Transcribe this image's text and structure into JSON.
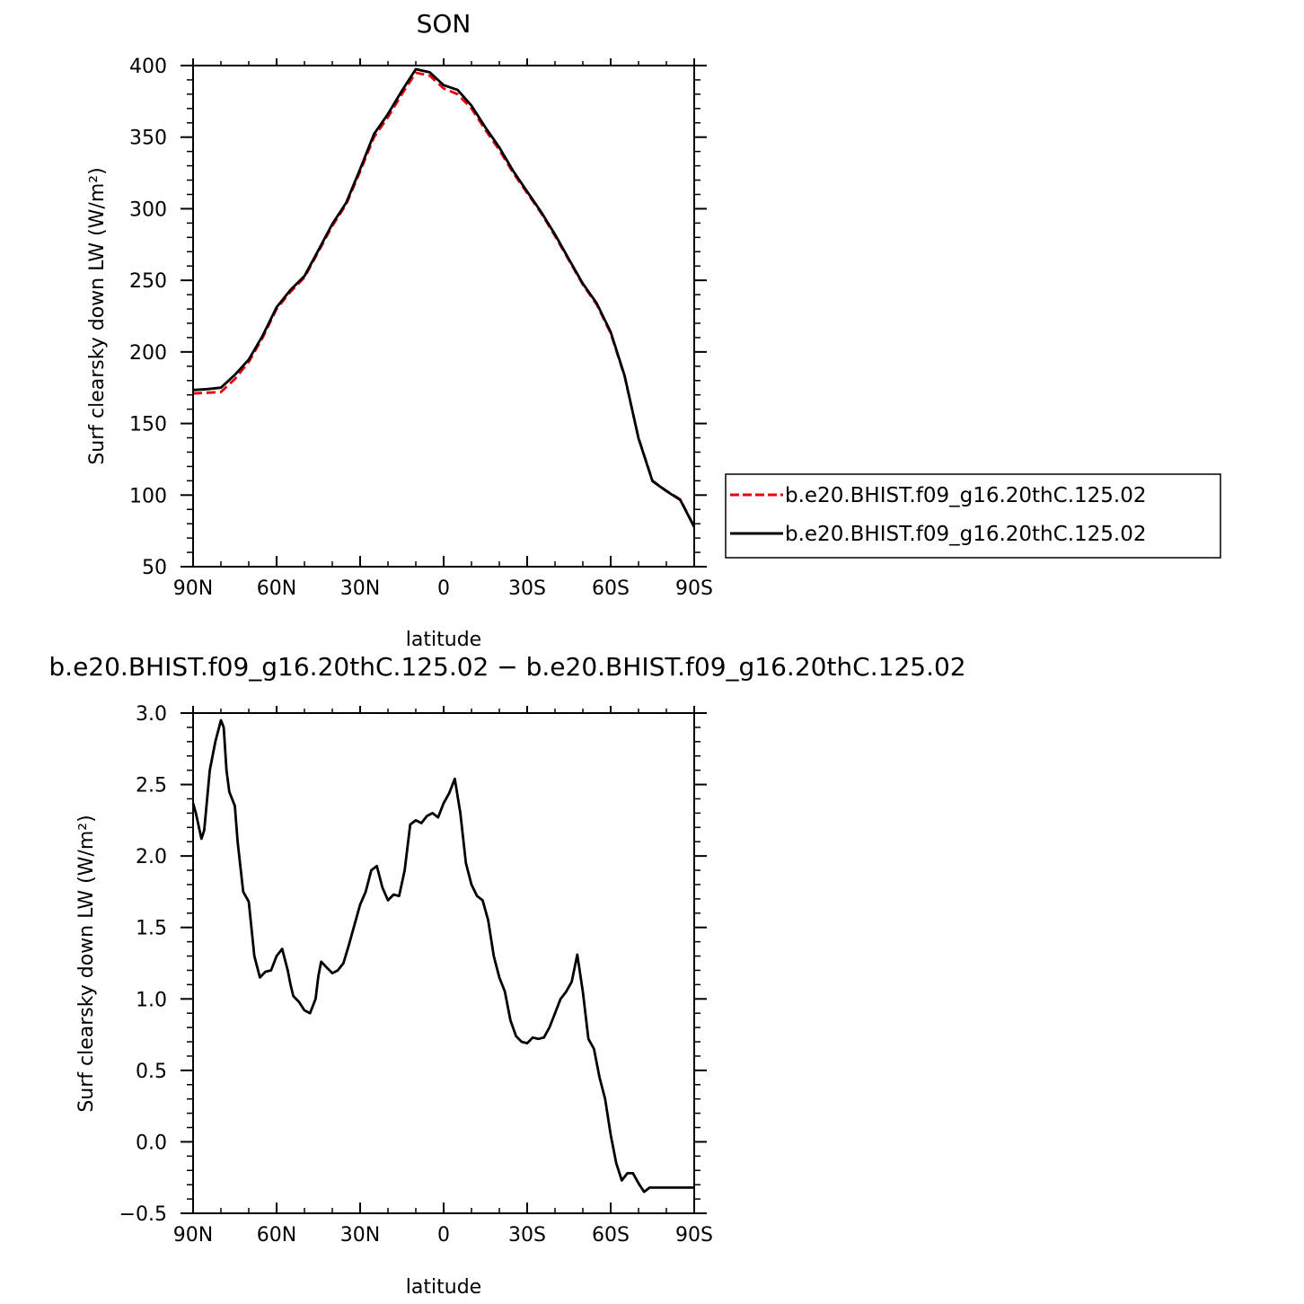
{
  "chart_data": [
    {
      "type": "line",
      "title": "SON",
      "xlabel": "latitude",
      "ylabel": "Surf clearsky down LW (W/m²)",
      "xlim": [
        90,
        -90
      ],
      "ylim": [
        50,
        400
      ],
      "x_tick_values": [
        90,
        60,
        30,
        0,
        -30,
        -60,
        -90
      ],
      "x_tick_labels": [
        "90N",
        "60N",
        "30N",
        "0",
        "30S",
        "60S",
        "90S"
      ],
      "y_tick_values": [
        50,
        100,
        150,
        200,
        250,
        300,
        350,
        400
      ],
      "y_tick_labels": [
        "50",
        "100",
        "150",
        "200",
        "250",
        "300",
        "350",
        "400"
      ],
      "legend_position": "right",
      "series": [
        {
          "name": "b.e20.BHIST.f09_g16.20thC.125.02",
          "color": "#e8000b",
          "style": "dashed",
          "x": [
            90,
            85,
            80,
            75,
            70,
            65,
            60,
            55,
            50,
            45,
            40,
            35,
            30,
            25,
            20,
            15,
            10,
            5,
            0,
            -5,
            -10,
            -15,
            -20,
            -25,
            -30,
            -35,
            -40,
            -45,
            -50,
            -55,
            -60,
            -65,
            -70,
            -75,
            -80,
            -85,
            -90
          ],
          "y": [
            171,
            171.5,
            172,
            181,
            193,
            210,
            230,
            242,
            252,
            270,
            288,
            303,
            326,
            350,
            364,
            380,
            395,
            393,
            384,
            380,
            370,
            355,
            341,
            325,
            311,
            297,
            281,
            264,
            247,
            233,
            213,
            183,
            140,
            110,
            103,
            97,
            78
          ]
        },
        {
          "name": "b.e20.BHIST.f09_g16.20thC.125.02",
          "color": "#000000",
          "style": "solid",
          "x": [
            90,
            85,
            80,
            75,
            70,
            65,
            60,
            55,
            50,
            45,
            40,
            35,
            30,
            25,
            20,
            15,
            10,
            5,
            0,
            -5,
            -10,
            -15,
            -20,
            -25,
            -30,
            -35,
            -40,
            -45,
            -50,
            -55,
            -60,
            -65,
            -70,
            -75,
            -80,
            -85,
            -90
          ],
          "y": [
            173.4,
            174,
            175,
            184,
            194.7,
            211.3,
            231.2,
            243.4,
            253,
            271,
            289.3,
            304.2,
            327.7,
            352.2,
            366.2,
            382.4,
            397.5,
            395.3,
            386.3,
            383,
            372,
            356.8,
            342.8,
            326.3,
            312,
            297.8,
            282,
            264.7,
            247.7,
            233.9,
            213.9,
            183.4,
            139.6,
            109.8,
            102.8,
            96.6,
            77.7
          ]
        }
      ]
    },
    {
      "type": "line",
      "title": "b.e20.BHIST.f09_g16.20thC.125.02 − b.e20.BHIST.f09_g16.20thC.125.02",
      "xlabel": "latitude",
      "ylabel": "Surf clearsky down LW (W/m²)",
      "xlim": [
        90,
        -90
      ],
      "ylim": [
        -0.5,
        3.0
      ],
      "x_tick_values": [
        90,
        60,
        30,
        0,
        -30,
        -60,
        -90
      ],
      "x_tick_labels": [
        "90N",
        "60N",
        "30N",
        "0",
        "30S",
        "60S",
        "90S"
      ],
      "y_tick_values": [
        -0.5,
        0.0,
        0.5,
        1.0,
        1.5,
        2.0,
        2.5,
        3.0
      ],
      "y_tick_labels": [
        "−0.5",
        "0.0",
        "0.5",
        "1.0",
        "1.5",
        "2.0",
        "2.5",
        "3.0"
      ],
      "series": [
        {
          "color": "#000000",
          "style": "solid",
          "x": [
            90,
            89,
            87,
            86,
            84,
            82,
            80,
            79,
            78,
            77,
            76,
            75,
            74,
            72,
            70,
            68,
            66,
            64,
            62,
            60,
            58,
            56,
            55,
            54,
            52,
            50,
            48,
            46,
            45,
            44,
            42,
            40,
            38,
            36,
            34,
            32,
            30,
            28,
            26,
            24,
            22,
            20,
            18,
            16,
            14,
            12,
            10,
            8,
            6,
            4,
            2,
            0,
            -2,
            -4,
            -6,
            -8,
            -10,
            -12,
            -14,
            -16,
            -18,
            -20,
            -22,
            -24,
            -26,
            -28,
            -30,
            -32,
            -34,
            -36,
            -38,
            -40,
            -42,
            -44,
            -46,
            -48,
            -50,
            -52,
            -54,
            -56,
            -58,
            -60,
            -62,
            -64,
            -66,
            -68,
            -70,
            -72,
            -74,
            -76,
            -78,
            -80,
            -82,
            -84,
            -86,
            -88,
            -90
          ],
          "y": [
            2.37,
            2.3,
            2.12,
            2.18,
            2.6,
            2.8,
            2.95,
            2.9,
            2.6,
            2.45,
            2.4,
            2.35,
            2.1,
            1.75,
            1.68,
            1.3,
            1.15,
            1.19,
            1.2,
            1.3,
            1.35,
            1.2,
            1.1,
            1.02,
            0.98,
            0.92,
            0.9,
            1.0,
            1.16,
            1.26,
            1.22,
            1.18,
            1.2,
            1.25,
            1.38,
            1.52,
            1.66,
            1.75,
            1.9,
            1.93,
            1.78,
            1.69,
            1.73,
            1.72,
            1.9,
            2.22,
            2.25,
            2.23,
            2.28,
            2.3,
            2.27,
            2.37,
            2.44,
            2.54,
            2.3,
            1.95,
            1.8,
            1.72,
            1.69,
            1.55,
            1.3,
            1.15,
            1.05,
            0.85,
            0.74,
            0.7,
            0.69,
            0.73,
            0.72,
            0.73,
            0.8,
            0.9,
            1.0,
            1.05,
            1.12,
            1.31,
            1.05,
            0.72,
            0.65,
            0.45,
            0.3,
            0.05,
            -0.15,
            -0.27,
            -0.22,
            -0.22,
            -0.29,
            -0.35,
            -0.32,
            -0.32,
            -0.32,
            -0.32,
            -0.32,
            -0.32,
            -0.32,
            -0.32,
            -0.32
          ]
        }
      ]
    }
  ]
}
